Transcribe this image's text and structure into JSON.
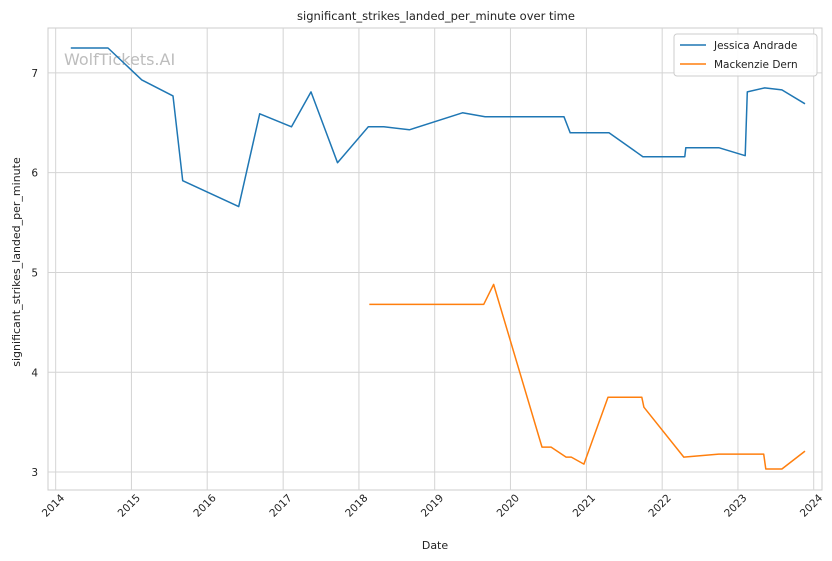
{
  "chart_data": {
    "type": "line",
    "title": "significant_strikes_landed_per_minute over time",
    "xlabel": "Date",
    "ylabel": "significant_strikes_landed_per_minute",
    "watermark": "WolfTickets.AI",
    "xlim": [
      "2013-11-25",
      "2024-02-10"
    ],
    "ylim": [
      2.82,
      7.45
    ],
    "x_ticks": [
      "2014",
      "2015",
      "2016",
      "2017",
      "2018",
      "2019",
      "2020",
      "2021",
      "2022",
      "2023",
      "2024"
    ],
    "y_ticks": [
      3,
      4,
      5,
      6,
      7
    ],
    "grid": true,
    "legend_position": "top-right",
    "series": [
      {
        "name": "Jessica Andrade",
        "color": "#1f77b4",
        "points": [
          [
            "2014-03-15",
            7.25
          ],
          [
            "2014-09-10",
            7.25
          ],
          [
            "2015-02-20",
            6.93
          ],
          [
            "2015-07-20",
            6.77
          ],
          [
            "2015-09-05",
            5.92
          ],
          [
            "2016-06-01",
            5.66
          ],
          [
            "2016-09-10",
            6.59
          ],
          [
            "2017-02-10",
            6.46
          ],
          [
            "2017-05-15",
            6.81
          ],
          [
            "2017-09-20",
            6.1
          ],
          [
            "2018-02-15",
            6.46
          ],
          [
            "2018-05-01",
            6.46
          ],
          [
            "2018-09-01",
            6.43
          ],
          [
            "2019-05-15",
            6.6
          ],
          [
            "2019-09-01",
            6.56
          ],
          [
            "2020-06-15",
            6.56
          ],
          [
            "2020-09-15",
            6.56
          ],
          [
            "2020-10-15",
            6.4
          ],
          [
            "2021-04-20",
            6.4
          ],
          [
            "2021-09-30",
            6.16
          ],
          [
            "2022-04-20",
            6.16
          ],
          [
            "2022-04-25",
            6.25
          ],
          [
            "2022-10-01",
            6.25
          ],
          [
            "2023-02-05",
            6.17
          ],
          [
            "2023-02-15",
            6.81
          ],
          [
            "2023-05-10",
            6.85
          ],
          [
            "2023-08-01",
            6.83
          ],
          [
            "2023-11-20",
            6.69
          ]
        ]
      },
      {
        "name": "Mackenzie Dern",
        "color": "#ff7f0e",
        "points": [
          [
            "2018-02-20",
            4.68
          ],
          [
            "2019-08-25",
            4.68
          ],
          [
            "2019-10-12",
            4.88
          ],
          [
            "2020-06-01",
            3.25
          ],
          [
            "2020-07-15",
            3.25
          ],
          [
            "2020-09-25",
            3.15
          ],
          [
            "2020-10-20",
            3.15
          ],
          [
            "2020-12-20",
            3.08
          ],
          [
            "2021-04-15",
            3.75
          ],
          [
            "2021-09-25",
            3.75
          ],
          [
            "2021-10-05",
            3.65
          ],
          [
            "2022-04-15",
            3.15
          ],
          [
            "2022-10-01",
            3.18
          ],
          [
            "2023-05-05",
            3.18
          ],
          [
            "2023-05-15",
            3.03
          ],
          [
            "2023-08-01",
            3.03
          ],
          [
            "2023-11-20",
            3.21
          ]
        ]
      }
    ]
  }
}
